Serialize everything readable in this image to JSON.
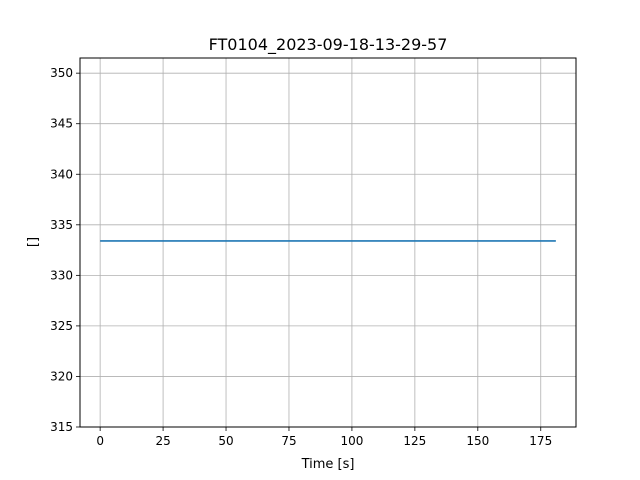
{
  "chart_data": {
    "type": "line",
    "title": "FT0104_2023-09-18-13-29-57",
    "xlabel": "Time [s]",
    "ylabel": "[]",
    "xlim": [
      -8,
      189
    ],
    "ylim": [
      315,
      351.5
    ],
    "x_ticks": [
      0,
      25,
      50,
      75,
      100,
      125,
      150,
      175
    ],
    "y_ticks": [
      315,
      320,
      325,
      330,
      335,
      340,
      345,
      350
    ],
    "grid": true,
    "series": [
      {
        "color": "#1f77b4",
        "x": [
          0,
          181
        ],
        "y": [
          333.4,
          333.4
        ]
      }
    ]
  }
}
